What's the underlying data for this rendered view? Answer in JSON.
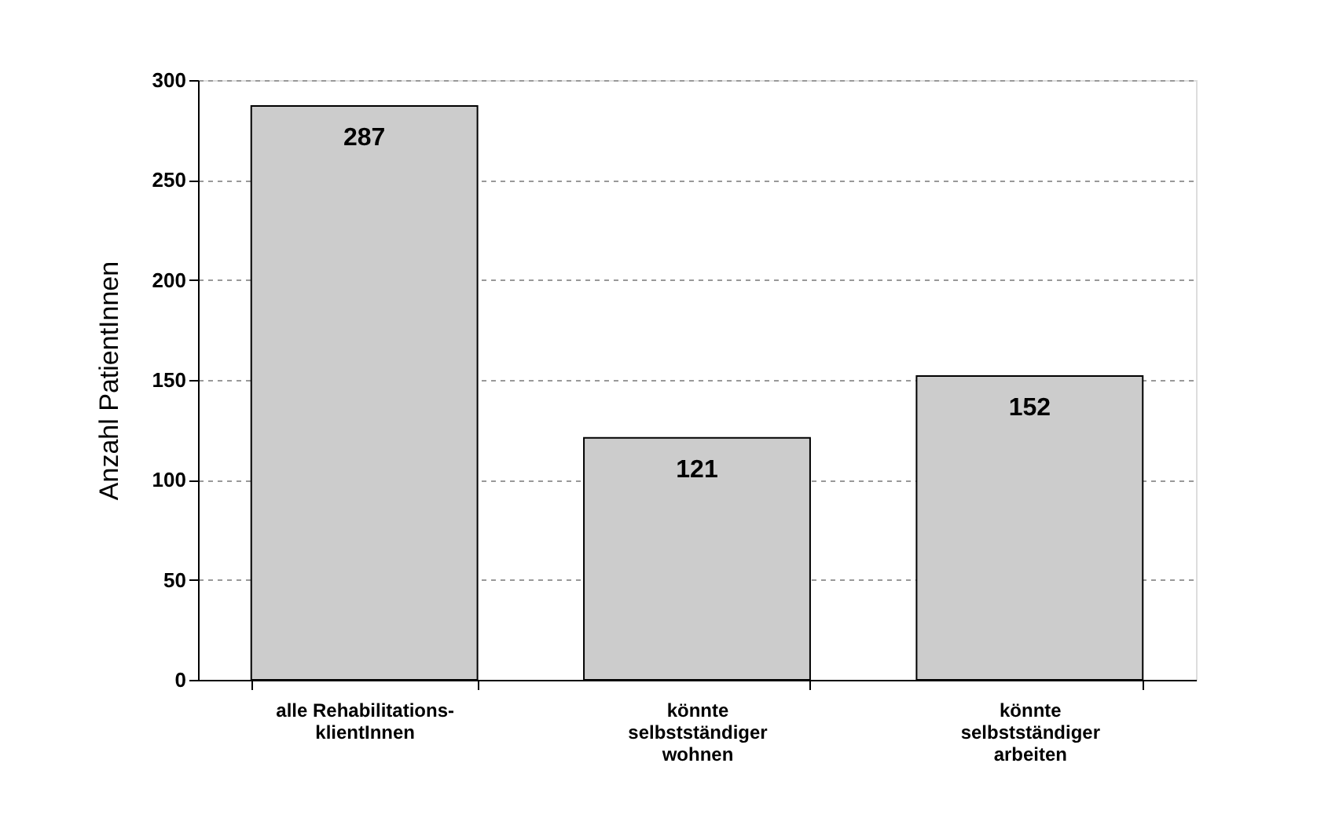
{
  "chart_data": {
    "type": "bar",
    "ylabel": "Anzahl PatientInnen",
    "categories": [
      "alle Rehabilitations-\nklientInnen",
      "könnte\nselbstständiger\nwohnen",
      "könnte\nselbstständiger\narbeiten"
    ],
    "values": [
      287,
      121,
      152
    ],
    "color": "#cccccc",
    "ylim": [
      0,
      300
    ],
    "yticks": [
      0,
      50,
      100,
      150,
      200,
      250,
      300
    ],
    "grid": "y",
    "data_labels": true
  }
}
